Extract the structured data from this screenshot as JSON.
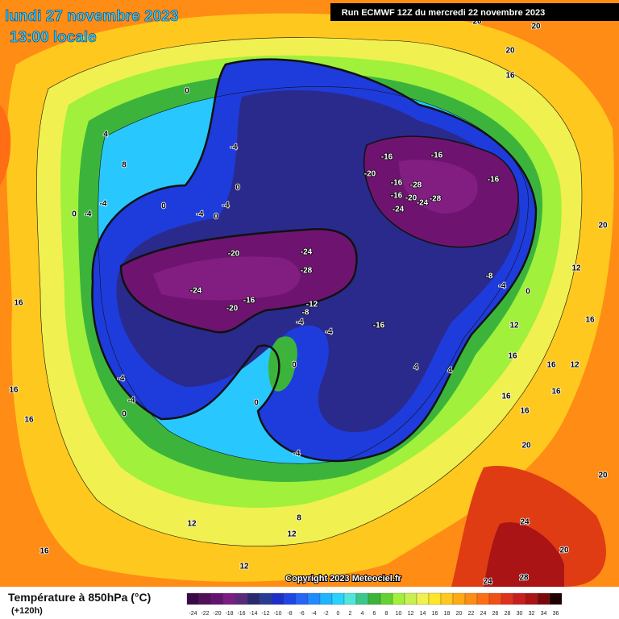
{
  "header": {
    "date": "lundi 27 novembre 2023",
    "time": "13:00 locale",
    "run": "Run ECMWF 12Z du mercredi 22 novembre 2023"
  },
  "footer": {
    "copyright": "Copyright 2023 Meteociel.fr"
  },
  "legend": {
    "title": "Température à 850hPa (°C)",
    "subtitle": "(+120h)",
    "ticks": [
      -24,
      -22,
      -20,
      -18,
      -16,
      -14,
      -12,
      -10,
      -8,
      -6,
      -4,
      -2,
      0,
      2,
      4,
      6,
      8,
      10,
      12,
      14,
      16,
      18,
      20,
      22,
      24,
      26,
      28,
      30,
      32,
      34,
      36
    ],
    "colors": [
      "#3c0a46",
      "#50105a",
      "#641470",
      "#7a1e84",
      "#5a2a7a",
      "#2a2a6e",
      "#283c96",
      "#1e2ec8",
      "#1e46e6",
      "#2864f5",
      "#1e8cff",
      "#1eb4ff",
      "#28d2ff",
      "#50e6dc",
      "#3cc88c",
      "#3cb43c",
      "#64d232",
      "#a0f03c",
      "#c8f050",
      "#f0f050",
      "#ffe628",
      "#ffc81e",
      "#ffaa14",
      "#ff8c14",
      "#ff6e14",
      "#f05014",
      "#dc321e",
      "#c81e1e",
      "#aa1414",
      "#7a0a0a",
      "#1e0000"
    ]
  },
  "map": {
    "contour_labels": [
      -16,
      -16,
      -20,
      -16,
      -16,
      -28,
      -16,
      -20,
      -28,
      -24,
      -24,
      -20,
      -24,
      -28,
      -24,
      -16,
      -20,
      -12,
      -8,
      -4,
      -4,
      -16,
      0,
      0,
      4,
      4,
      -8,
      -4,
      0,
      12,
      16,
      16,
      12,
      16,
      16,
      16,
      20,
      20,
      12,
      16,
      20,
      24,
      28,
      24,
      20,
      20,
      20,
      20,
      16,
      16,
      16,
      16,
      16,
      12,
      8,
      12,
      12,
      0,
      4,
      8,
      -4,
      0,
      -4,
      -4,
      0,
      0,
      -4,
      -4,
      0,
      -4,
      -4,
      0,
      -4
    ]
  }
}
